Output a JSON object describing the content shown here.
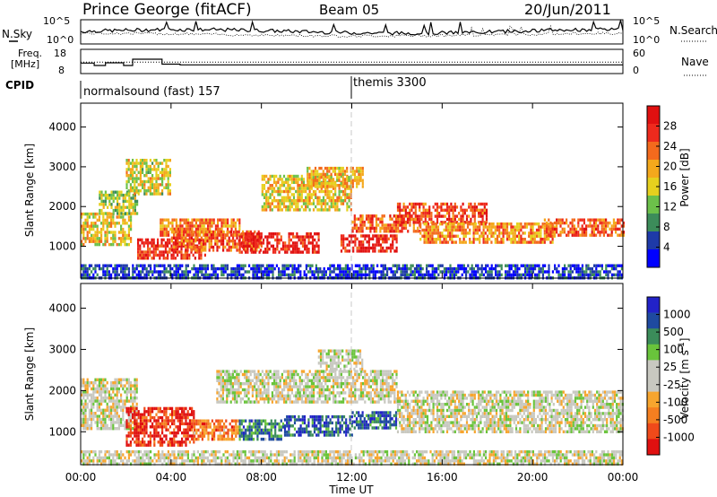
{
  "header": {
    "station": "Prince George (fitACF)",
    "beam": "Beam 05",
    "date": "20/Jun/2011"
  },
  "chart_data": [
    {
      "type": "line",
      "panel": "noise",
      "left_label": "N.Sky",
      "right_label": "N.Search",
      "y_ticks_left": [
        "10^5",
        "10^0"
      ],
      "y_ticks_right": [
        "10^5",
        "10^0"
      ]
    },
    {
      "type": "line",
      "panel": "frequency",
      "left_label_line1": "Freq.",
      "left_label_line2": "[MHz]",
      "right_label": "Nave",
      "y_ticks_left": [
        "18",
        "8"
      ],
      "y_ticks_right": [
        "60",
        "0"
      ],
      "series": [
        {
          "name": "Freq",
          "x_hours": [
            0,
            0.6,
            0.6,
            1.1,
            1.1,
            1.9,
            1.9,
            2.3,
            2.3,
            3.6,
            3.6,
            4.4,
            4.4,
            5.0,
            5.0,
            24
          ],
          "values": [
            12.3,
            12.3,
            11.2,
            11.2,
            12.4,
            12.4,
            11.2,
            11.2,
            14.0,
            14.0,
            11.8,
            11.8,
            11.5,
            11.5,
            11.5,
            11.5
          ]
        },
        {
          "name": "Nave",
          "x_hours": [
            0,
            24
          ],
          "values": [
            28,
            28
          ]
        }
      ]
    },
    {
      "type": "table",
      "panel": "cpid",
      "label": "CPID",
      "segments": [
        {
          "name": "normalsound (fast) 157",
          "start_hour": 0,
          "end_hour": 12
        },
        {
          "name": "themis 3300",
          "start_hour": 12,
          "end_hour": 24
        }
      ]
    },
    {
      "type": "heatmap",
      "panel": "power",
      "ylabel": "Slant Range [km]",
      "xlim": [
        0,
        24
      ],
      "ylim": [
        200,
        4600
      ],
      "y_ticks": [
        1000,
        2000,
        3000,
        4000
      ],
      "colorbar": {
        "label": "Power [dB]",
        "ticks": [
          "28",
          "24",
          "20",
          "16",
          "12",
          "8",
          "4"
        ],
        "colors": [
          "#0000ff",
          "#1e3aa8",
          "#3c8c5a",
          "#6cc04a",
          "#e6d01e",
          "#f4a81c",
          "#f36a1d",
          "#ee2a1d",
          "#e01010"
        ]
      },
      "bands": [
        {
          "x": [
            0.0,
            2.2
          ],
          "range": [
            1050,
            1850
          ],
          "level": 0.55
        },
        {
          "x": [
            0.8,
            2.5
          ],
          "range": [
            1850,
            2400
          ],
          "level": 0.45
        },
        {
          "x": [
            2.0,
            4.0
          ],
          "range": [
            2300,
            3200
          ],
          "level": 0.5
        },
        {
          "x": [
            2.5,
            5.5
          ],
          "range": [
            700,
            1200
          ],
          "level": 0.85
        },
        {
          "x": [
            3.5,
            7.0
          ],
          "range": [
            1300,
            1700
          ],
          "level": 0.7
        },
        {
          "x": [
            4.0,
            8.0
          ],
          "range": [
            900,
            1400
          ],
          "level": 0.75
        },
        {
          "x": [
            7.0,
            10.5
          ],
          "range": [
            850,
            1350
          ],
          "level": 0.9
        },
        {
          "x": [
            8.0,
            12.0
          ],
          "range": [
            1900,
            2800
          ],
          "level": 0.55
        },
        {
          "x": [
            10.0,
            12.5
          ],
          "range": [
            2500,
            3000
          ],
          "level": 0.6
        },
        {
          "x": [
            11.5,
            14.0
          ],
          "range": [
            900,
            1300
          ],
          "level": 0.9
        },
        {
          "x": [
            12.0,
            15.0
          ],
          "range": [
            1400,
            1800
          ],
          "level": 0.75
        },
        {
          "x": [
            14.0,
            18.0
          ],
          "range": [
            1600,
            2100
          ],
          "level": 0.8
        },
        {
          "x": [
            15.0,
            21.0
          ],
          "range": [
            1100,
            1600
          ],
          "level": 0.65
        },
        {
          "x": [
            20.5,
            24.0
          ],
          "range": [
            1300,
            1700
          ],
          "level": 0.75
        },
        {
          "x": [
            0.0,
            24.0
          ],
          "range": [
            200,
            550
          ],
          "level": 0.15
        }
      ],
      "xticks": [
        "00:00",
        "04:00",
        "08:00",
        "12:00",
        "16:00",
        "20:00",
        "00:00"
      ]
    },
    {
      "type": "heatmap",
      "panel": "velocity",
      "ylabel": "Slant Range [km]",
      "xlabel": "Time UT",
      "xlim": [
        0,
        24
      ],
      "ylim": [
        200,
        4600
      ],
      "y_ticks": [
        1000,
        2000,
        3000,
        4000
      ],
      "colorbar": {
        "label": "Velocity [m s^-1]",
        "ticks": [
          "1000",
          "500",
          "100",
          "25",
          "-25",
          "-100",
          "-500",
          "-1000"
        ],
        "colors": [
          "#e01010",
          "#f04a1a",
          "#f57f20",
          "#f7a52e",
          "#c8c8c0",
          "#c8c8c0",
          "#69c43b",
          "#3b8c5a",
          "#1e4aa0",
          "#2222c8"
        ]
      },
      "bands": [
        {
          "x": [
            0.0,
            2.5
          ],
          "range": [
            1100,
            2300
          ],
          "level": 0.5
        },
        {
          "x": [
            2.0,
            5.0
          ],
          "range": [
            650,
            1600
          ],
          "level": 0.08
        },
        {
          "x": [
            5.0,
            7.0
          ],
          "range": [
            850,
            1300
          ],
          "level": 0.25
        },
        {
          "x": [
            7.0,
            9.0
          ],
          "range": [
            850,
            1300
          ],
          "level": 0.75
        },
        {
          "x": [
            9.0,
            12.0
          ],
          "range": [
            900,
            1400
          ],
          "level": 0.85
        },
        {
          "x": [
            12.0,
            14.0
          ],
          "range": [
            1100,
            1500
          ],
          "level": 0.85
        },
        {
          "x": [
            6.0,
            14.0
          ],
          "range": [
            1700,
            2500
          ],
          "level": 0.5
        },
        {
          "x": [
            14.0,
            24.0
          ],
          "range": [
            1000,
            2000
          ],
          "level": 0.5
        },
        {
          "x": [
            10.5,
            12.5
          ],
          "range": [
            2500,
            3000
          ],
          "level": 0.5
        },
        {
          "x": [
            0.0,
            24.0
          ],
          "range": [
            200,
            550
          ],
          "level": 0.5
        }
      ],
      "xticks": [
        "00:00",
        "04:00",
        "08:00",
        "12:00",
        "16:00",
        "20:00",
        "00:00"
      ]
    }
  ]
}
